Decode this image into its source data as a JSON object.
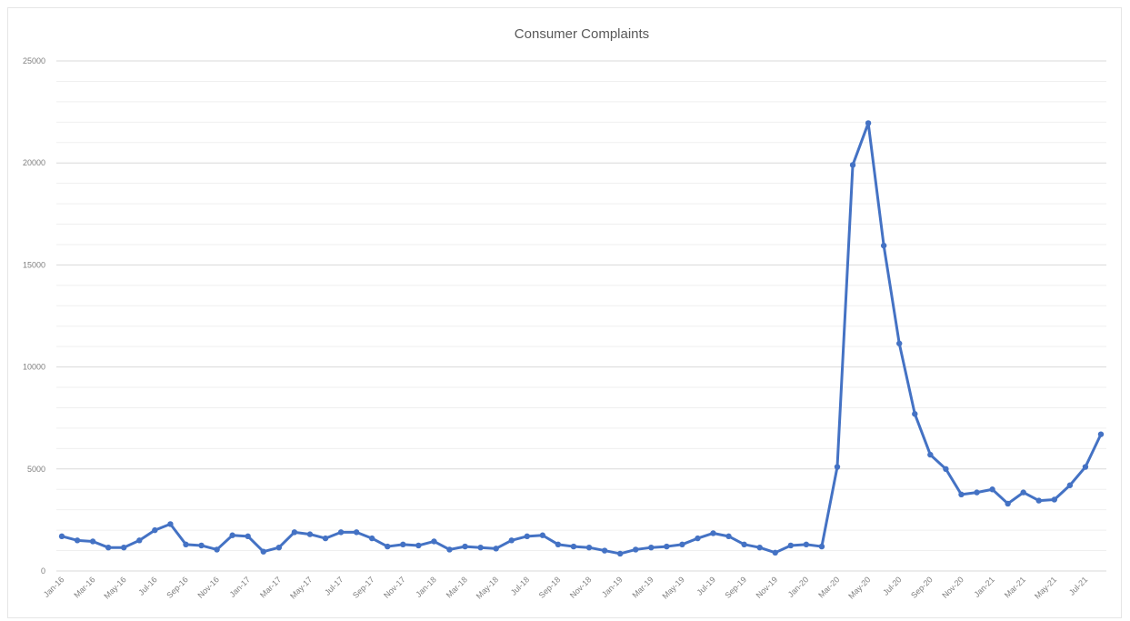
{
  "chart_data": {
    "type": "line",
    "title": "Consumer Complaints",
    "xlabel": "",
    "ylabel": "",
    "ylim": [
      0,
      25000
    ],
    "yticks": [
      0,
      5000,
      10000,
      15000,
      20000,
      25000
    ],
    "ytick_labels": [
      "0",
      "5000",
      "10000",
      "15000",
      "20000",
      "25000"
    ],
    "grid": true,
    "legend": "none",
    "color": "#4472C4",
    "categories": [
      "Jan-16",
      "Feb-16",
      "Mar-16",
      "Apr-16",
      "May-16",
      "Jun-16",
      "Jul-16",
      "Aug-16",
      "Sep-16",
      "Oct-16",
      "Nov-16",
      "Dec-16",
      "Jan-17",
      "Feb-17",
      "Mar-17",
      "Apr-17",
      "May-17",
      "Jun-17",
      "Jul-17",
      "Aug-17",
      "Sep-17",
      "Oct-17",
      "Nov-17",
      "Dec-17",
      "Jan-18",
      "Feb-18",
      "Mar-18",
      "Apr-18",
      "May-18",
      "Jun-18",
      "Jul-18",
      "Aug-18",
      "Sep-18",
      "Oct-18",
      "Nov-18",
      "Dec-18",
      "Jan-19",
      "Feb-19",
      "Mar-19",
      "Apr-19",
      "May-19",
      "Jun-19",
      "Jul-19",
      "Aug-19",
      "Sep-19",
      "Oct-19",
      "Nov-19",
      "Dec-19",
      "Jan-20",
      "Feb-20",
      "Mar-20",
      "Apr-20",
      "May-20",
      "Jun-20",
      "Jul-20",
      "Aug-20",
      "Sep-20",
      "Oct-20",
      "Nov-20",
      "Dec-20",
      "Jan-21",
      "Feb-21",
      "Mar-21",
      "Apr-21",
      "May-21",
      "Jun-21",
      "Jul-21",
      "Aug-21"
    ],
    "tick_labels": [
      "Jan-16",
      "Mar-16",
      "May-16",
      "Jul-16",
      "Sep-16",
      "Nov-16",
      "Jan-17",
      "Mar-17",
      "May-17",
      "Jul-17",
      "Sep-17",
      "Nov-17",
      "Jan-18",
      "Mar-18",
      "May-18",
      "Jul-18",
      "Sep-18",
      "Nov-18",
      "Jan-19",
      "Mar-19",
      "May-19",
      "Jul-19",
      "Sep-19",
      "Nov-19",
      "Jan-20",
      "Mar-20",
      "May-20",
      "Jul-20",
      "Sep-20",
      "Nov-20",
      "Jan-21",
      "Mar-21",
      "May-21",
      "Jul-21"
    ],
    "series": [
      {
        "values": [
          1700,
          1500,
          1450,
          1150,
          1150,
          1500,
          2000,
          2300,
          1300,
          1250,
          1050,
          1750,
          1700,
          950,
          1150,
          1900,
          1800,
          1600,
          1900,
          1900,
          1600,
          1200,
          1300,
          1250,
          1450,
          1050,
          1200,
          1150,
          1100,
          1500,
          1700,
          1750,
          1300,
          1200,
          1150,
          1000,
          850,
          1050,
          1150,
          1200,
          1300,
          1600,
          1850,
          1700,
          1300,
          1150,
          900,
          1250,
          1300,
          1200,
          5100,
          19900,
          21950,
          15950,
          11150,
          7700,
          5700,
          5000,
          3750,
          3850,
          4000,
          3300,
          3850,
          3450,
          3500,
          4200,
          5100,
          6700
        ]
      }
    ]
  }
}
